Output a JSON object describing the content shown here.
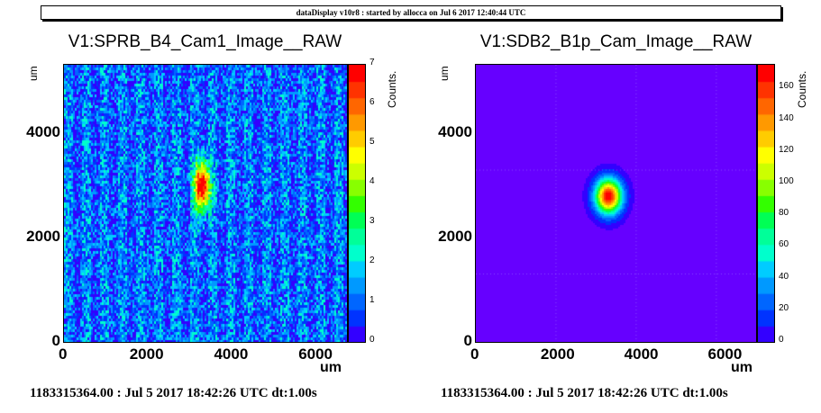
{
  "header": {
    "text": "dataDisplay v10r8 : started by allocca on Jul  6 2017 12:40:44 UTC"
  },
  "panels": [
    {
      "title": "V1:SPRB_B4_Cam1_Image__RAW",
      "y_unit": "um",
      "x_unit": "um",
      "z_label": "Counts.",
      "x_ticks": [
        "0",
        "2000",
        "4000",
        "6000"
      ],
      "y_ticks": [
        "0",
        "2000",
        "4000"
      ],
      "z_ticks": [
        "0",
        "1",
        "2",
        "3",
        "4",
        "5",
        "6",
        "7"
      ],
      "footer": "1183315364.00 : Jul  5 2017 18:42:26 UTC dt:1.00s"
    },
    {
      "title": "V1:SDB2_B1p_Cam_Image__RAW",
      "y_unit": "um",
      "x_unit": "um",
      "z_label": "Counts.",
      "x_ticks": [
        "0",
        "2000",
        "4000",
        "6000"
      ],
      "y_ticks": [
        "0",
        "2000",
        "4000"
      ],
      "z_ticks": [
        "0",
        "20",
        "40",
        "60",
        "80",
        "100",
        "120",
        "140",
        "160"
      ],
      "footer": "1183315364.00 : Jul  5 2017 18:42:26 UTC dt:1.00s"
    }
  ],
  "chart_data": [
    {
      "type": "heatmap",
      "title": "V1:SPRB_B4_Cam1_Image__RAW",
      "xlabel": "um",
      "ylabel": "um",
      "zlabel": "Counts.",
      "xlim": [
        0,
        6700
      ],
      "ylim": [
        0,
        5300
      ],
      "zlim": [
        0,
        7
      ],
      "spot": {
        "x": 3250,
        "y": 3000,
        "peak": 7
      },
      "background_level": 1.5
    },
    {
      "type": "heatmap",
      "title": "V1:SDB2_B1p_Cam_Image__RAW",
      "xlabel": "um",
      "ylabel": "um",
      "zlabel": "Counts.",
      "xlim": [
        0,
        6700
      ],
      "ylim": [
        0,
        5300
      ],
      "zlim": [
        0,
        175
      ],
      "spot": {
        "x": 3150,
        "y": 2800,
        "peak": 175
      },
      "background_level": 0
    }
  ],
  "colors": {
    "frame": "#000000",
    "background_right": "#6600ff"
  }
}
